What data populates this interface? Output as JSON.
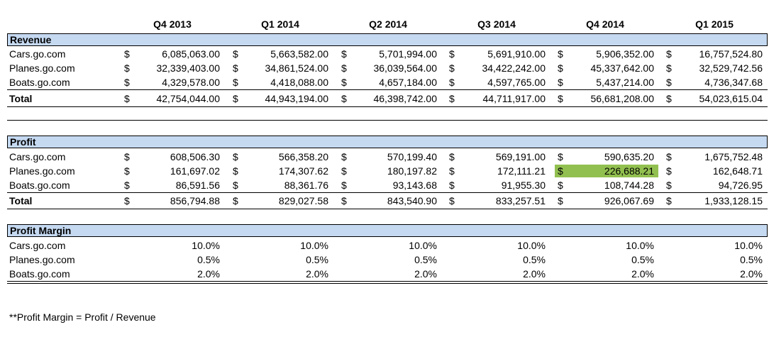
{
  "columns": [
    "Q4 2013",
    "Q1 2014",
    "Q2 2014",
    "Q3 2014",
    "Q4 2014",
    "Q1 2015"
  ],
  "currency_symbol": "$",
  "revenue": {
    "title": "Revenue",
    "rows": [
      {
        "label": "Cars.go.com",
        "values": [
          "6,085,063.00",
          "5,663,582.00",
          "5,701,994.00",
          "5,691,910.00",
          "5,906,352.00",
          "16,757,524.80"
        ]
      },
      {
        "label": "Planes.go.com",
        "values": [
          "32,339,403.00",
          "34,861,524.00",
          "36,039,564.00",
          "34,422,242.00",
          "45,337,642.00",
          "32,529,742.56"
        ]
      },
      {
        "label": "Boats.go.com",
        "values": [
          "4,329,578.00",
          "4,418,088.00",
          "4,657,184.00",
          "4,597,765.00",
          "5,437,214.00",
          "4,736,347.68"
        ]
      }
    ],
    "total": {
      "label": "Total",
      "values": [
        "42,754,044.00",
        "44,943,194.00",
        "46,398,742.00",
        "44,711,917.00",
        "56,681,208.00",
        "54,023,615.04"
      ]
    }
  },
  "profit": {
    "title": "Profit",
    "rows": [
      {
        "label": "Cars.go.com",
        "values": [
          "608,506.30",
          "566,358.20",
          "570,199.40",
          "569,191.00",
          "590,635.20",
          "1,675,752.48"
        ]
      },
      {
        "label": "Planes.go.com",
        "values": [
          "161,697.02",
          "174,307.62",
          "180,197.82",
          "172,111.21",
          "226,688.21",
          "162,648.71"
        ]
      },
      {
        "label": "Boats.go.com",
        "values": [
          "86,591.56",
          "88,361.76",
          "93,143.68",
          "91,955.30",
          "108,744.28",
          "94,726.95"
        ]
      }
    ],
    "total": {
      "label": "Total",
      "values": [
        "856,794.88",
        "829,027.58",
        "843,540.90",
        "833,257.51",
        "926,067.69",
        "1,933,128.15"
      ]
    },
    "highlight": {
      "row": 1,
      "col": 4,
      "color": "#92c050"
    }
  },
  "margin": {
    "title": "Profit Margin",
    "rows": [
      {
        "label": "Cars.go.com",
        "values": [
          "10.0%",
          "10.0%",
          "10.0%",
          "10.0%",
          "10.0%",
          "10.0%"
        ]
      },
      {
        "label": "Planes.go.com",
        "values": [
          "0.5%",
          "0.5%",
          "0.5%",
          "0.5%",
          "0.5%",
          "0.5%"
        ]
      },
      {
        "label": "Boats.go.com",
        "values": [
          "2.0%",
          "2.0%",
          "2.0%",
          "2.0%",
          "2.0%",
          "2.0%"
        ]
      }
    ]
  },
  "footnote": "**Profit Margin = Profit / Revenue",
  "colors": {
    "section_header": "#c5d9f1",
    "highlight": "#92c050"
  }
}
